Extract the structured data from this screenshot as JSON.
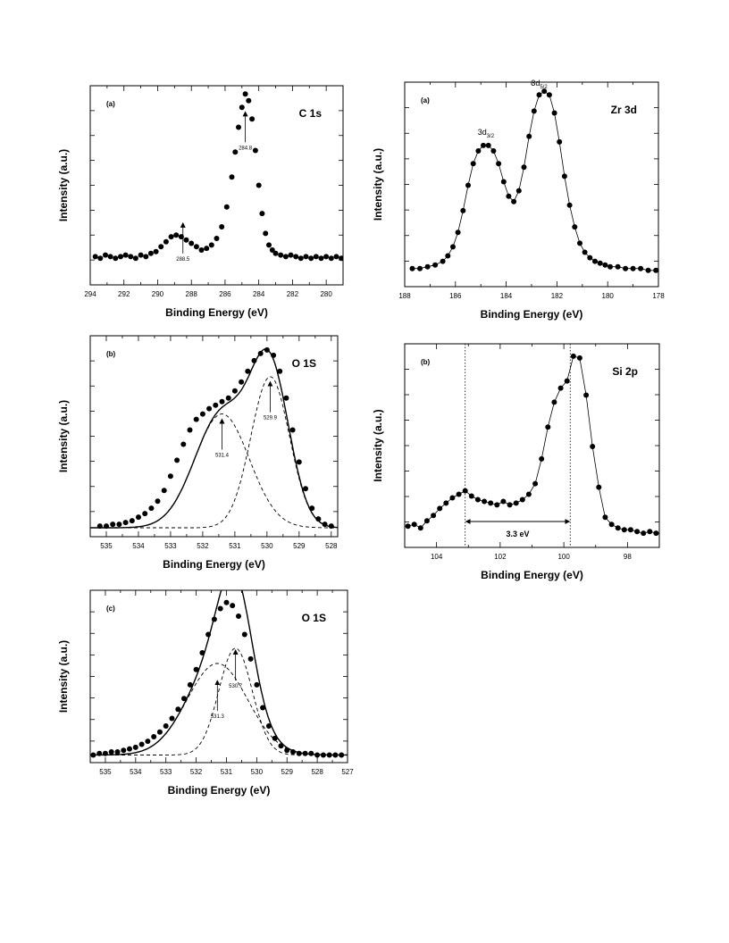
{
  "chart_data": [
    {
      "id": "c1s",
      "type": "scatter",
      "panel_tag": "(a)",
      "title": "C 1s",
      "xlabel": "Binding Energy (eV)",
      "ylabel": "Intensity (a.u.)",
      "xlim": [
        294,
        279
      ],
      "x_reversed": true,
      "xticks": [
        294,
        292,
        290,
        288,
        286,
        284,
        282,
        280
      ],
      "ylim": [
        -0.15,
        1.05
      ],
      "y_ticks_unlabeled": true,
      "series": [
        {
          "style": "markers",
          "x": [
            293.7,
            293.4,
            293.1,
            292.8,
            292.5,
            292.2,
            291.9,
            291.6,
            291.3,
            291.0,
            290.7,
            290.4,
            290.1,
            289.8,
            289.5,
            289.2,
            288.9,
            288.6,
            288.3,
            288.0,
            287.7,
            287.4,
            287.1,
            286.8,
            286.5,
            286.2,
            285.9,
            285.6,
            285.4,
            285.2,
            285.0,
            284.8,
            284.6,
            284.4,
            284.2,
            284.0,
            283.8,
            283.6,
            283.4,
            283.2,
            283.0,
            282.7,
            282.4,
            282.1,
            281.8,
            281.5,
            281.2,
            280.9,
            280.6,
            280.3,
            280.0,
            279.7,
            279.4,
            279.1
          ],
          "y": [
            0.02,
            0.01,
            0.03,
            0.02,
            0.01,
            0.02,
            0.03,
            0.02,
            0.01,
            0.03,
            0.02,
            0.04,
            0.05,
            0.08,
            0.11,
            0.14,
            0.15,
            0.14,
            0.12,
            0.1,
            0.08,
            0.06,
            0.07,
            0.09,
            0.13,
            0.2,
            0.32,
            0.5,
            0.65,
            0.8,
            0.92,
            1.0,
            0.96,
            0.85,
            0.66,
            0.45,
            0.28,
            0.16,
            0.09,
            0.06,
            0.04,
            0.03,
            0.02,
            0.03,
            0.02,
            0.01,
            0.02,
            0.01,
            0.02,
            0.01,
            0.02,
            0.01,
            0.02,
            0.01
          ]
        }
      ],
      "annotations": [
        {
          "text": "284.8",
          "x": 284.8,
          "y": 0.72
        },
        {
          "text": "288.5",
          "x": 288.5,
          "y": 0.05
        }
      ]
    },
    {
      "id": "o1s_b",
      "type": "scatter",
      "panel_tag": "(b)",
      "title": "O 1S",
      "xlabel": "Binding Energy (eV)",
      "ylabel": "Intensity (a.u.)",
      "xlim": [
        535.5,
        527.8
      ],
      "x_reversed": true,
      "xticks": [
        535,
        534,
        533,
        532,
        531,
        530,
        529,
        528
      ],
      "ylim": [
        -0.05,
        1.08
      ],
      "y_ticks_unlabeled": true,
      "series": [
        {
          "style": "markers",
          "x": [
            535.2,
            535.0,
            534.8,
            534.6,
            534.4,
            534.2,
            534.0,
            533.8,
            533.6,
            533.4,
            533.2,
            533.0,
            532.8,
            532.6,
            532.4,
            532.2,
            532.0,
            531.8,
            531.6,
            531.4,
            531.2,
            531.0,
            530.8,
            530.6,
            530.4,
            530.2,
            530.0,
            529.8,
            529.6,
            529.4,
            529.2,
            529.0,
            528.8,
            528.6,
            528.4,
            528.2,
            528.0
          ],
          "y": [
            0.01,
            0.01,
            0.02,
            0.02,
            0.03,
            0.04,
            0.06,
            0.08,
            0.11,
            0.15,
            0.21,
            0.29,
            0.38,
            0.47,
            0.55,
            0.61,
            0.64,
            0.67,
            0.69,
            0.71,
            0.73,
            0.77,
            0.82,
            0.88,
            0.94,
            0.98,
            1.0,
            0.97,
            0.88,
            0.73,
            0.55,
            0.37,
            0.22,
            0.11,
            0.05,
            0.02,
            0.01
          ]
        },
        {
          "style": "solid-line",
          "components": [
            {
              "center": 531.4,
              "amp": 0.64,
              "sigma": 0.85
            },
            {
              "center": 529.9,
              "amp": 0.85,
              "sigma": 0.6
            }
          ]
        },
        {
          "style": "dashed-line",
          "component": {
            "center": 531.4,
            "amp": 0.64,
            "sigma": 0.85
          }
        },
        {
          "style": "dashed-line",
          "component": {
            "center": 529.9,
            "amp": 0.85,
            "sigma": 0.6
          }
        }
      ],
      "annotations": [
        {
          "text": "531.4",
          "x": 531.4,
          "y": 0.45
        },
        {
          "text": "529.9",
          "x": 529.9,
          "y": 0.66
        }
      ]
    },
    {
      "id": "o1s_c",
      "type": "scatter",
      "panel_tag": "(c)",
      "title": "O 1S",
      "xlabel": "Binding Energy (eV)",
      "ylabel": "Intensity (a.u.)",
      "xlim": [
        535.5,
        527
      ],
      "x_reversed": true,
      "xticks": [
        535,
        534,
        533,
        532,
        531,
        530,
        529,
        528,
        527
      ],
      "ylim": [
        -0.05,
        1.08
      ],
      "y_ticks_unlabeled": true,
      "series": [
        {
          "style": "markers",
          "x": [
            535.4,
            535.2,
            535.0,
            534.8,
            534.6,
            534.4,
            534.2,
            534.0,
            533.8,
            533.6,
            533.4,
            533.2,
            533.0,
            532.8,
            532.6,
            532.4,
            532.2,
            532.0,
            531.8,
            531.6,
            531.4,
            531.2,
            531.0,
            530.8,
            530.6,
            530.4,
            530.2,
            530.0,
            529.8,
            529.6,
            529.4,
            529.2,
            529.0,
            528.8,
            528.6,
            528.4,
            528.2,
            528.0,
            527.8,
            527.6,
            527.4,
            527.2
          ],
          "y": [
            0.0,
            0.01,
            0.01,
            0.02,
            0.02,
            0.03,
            0.04,
            0.05,
            0.07,
            0.09,
            0.12,
            0.15,
            0.19,
            0.24,
            0.3,
            0.37,
            0.46,
            0.56,
            0.67,
            0.79,
            0.89,
            0.96,
            1.0,
            0.98,
            0.91,
            0.79,
            0.63,
            0.46,
            0.31,
            0.19,
            0.11,
            0.06,
            0.03,
            0.02,
            0.01,
            0.01,
            0.01,
            0.0,
            0.0,
            0.0,
            0.0,
            0.0
          ]
        },
        {
          "style": "solid-line",
          "components": [
            {
              "center": 531.3,
              "amp": 0.6,
              "sigma": 1.0
            },
            {
              "center": 530.7,
              "amp": 0.7,
              "sigma": 0.55
            }
          ]
        },
        {
          "style": "dashed-line",
          "component": {
            "center": 531.3,
            "amp": 0.6,
            "sigma": 1.0
          }
        },
        {
          "style": "dashed-line",
          "component": {
            "center": 530.7,
            "amp": 0.7,
            "sigma": 0.55
          }
        }
      ],
      "annotations": [
        {
          "text": "530.7",
          "x": 530.7,
          "y": 0.5
        },
        {
          "text": "531.3",
          "x": 531.3,
          "y": 0.3
        }
      ]
    },
    {
      "id": "zr3d",
      "type": "scatter",
      "panel_tag": "(a)",
      "title": "Zr 3d",
      "xlabel": "Binding Energy (eV)",
      "ylabel": "Intensity (a.u.)",
      "xlim": [
        188,
        178
      ],
      "x_reversed": true,
      "xticks": [
        188,
        186,
        184,
        182,
        180,
        178
      ],
      "ylim": [
        -0.08,
        1.05
      ],
      "y_ticks_unlabeled": true,
      "series": [
        {
          "style": "markers-and-line",
          "x": [
            187.7,
            187.4,
            187.1,
            186.8,
            186.5,
            186.3,
            186.1,
            185.9,
            185.7,
            185.5,
            185.3,
            185.1,
            184.9,
            184.7,
            184.5,
            184.3,
            184.1,
            183.9,
            183.7,
            183.5,
            183.3,
            183.1,
            182.9,
            182.7,
            182.5,
            182.3,
            182.1,
            181.9,
            181.7,
            181.5,
            181.3,
            181.1,
            180.9,
            180.7,
            180.5,
            180.3,
            180.1,
            179.9,
            179.6,
            179.3,
            179.0,
            178.7,
            178.4,
            178.1
          ],
          "y": [
            0.02,
            0.02,
            0.03,
            0.04,
            0.06,
            0.09,
            0.14,
            0.22,
            0.34,
            0.48,
            0.6,
            0.67,
            0.7,
            0.7,
            0.67,
            0.6,
            0.5,
            0.42,
            0.39,
            0.45,
            0.58,
            0.75,
            0.89,
            0.98,
            1.0,
            0.98,
            0.88,
            0.72,
            0.53,
            0.37,
            0.25,
            0.16,
            0.11,
            0.08,
            0.06,
            0.05,
            0.04,
            0.03,
            0.03,
            0.02,
            0.02,
            0.02,
            0.01,
            0.01
          ]
        }
      ],
      "peak_labels": [
        {
          "main": "3d",
          "sub": "3/2",
          "x": 184.8,
          "y": 0.76
        },
        {
          "main": "3d",
          "sub": "5/2",
          "x": 182.7,
          "y": 1.03
        }
      ]
    },
    {
      "id": "si2p",
      "type": "scatter",
      "panel_tag": "(b)",
      "title": "Si 2p",
      "xlabel": "Binding Energy (eV)",
      "ylabel": "Intensity (a.u.)",
      "xlim": [
        105,
        97
      ],
      "x_reversed": true,
      "xticks": [
        104,
        102,
        100,
        98
      ],
      "ylim": [
        -0.1,
        1.05
      ],
      "y_ticks_unlabeled": true,
      "series": [
        {
          "style": "markers-and-line",
          "x": [
            104.9,
            104.7,
            104.5,
            104.3,
            104.1,
            103.9,
            103.7,
            103.5,
            103.3,
            103.1,
            102.9,
            102.7,
            102.5,
            102.3,
            102.1,
            101.9,
            101.7,
            101.5,
            101.3,
            101.1,
            100.9,
            100.7,
            100.5,
            100.3,
            100.1,
            99.9,
            99.7,
            99.5,
            99.3,
            99.1,
            98.9,
            98.7,
            98.5,
            98.3,
            98.1,
            97.9,
            97.7,
            97.5,
            97.3,
            97.1
          ],
          "y": [
            0.02,
            0.03,
            0.01,
            0.05,
            0.08,
            0.12,
            0.15,
            0.18,
            0.2,
            0.22,
            0.19,
            0.17,
            0.16,
            0.15,
            0.14,
            0.16,
            0.14,
            0.15,
            0.17,
            0.2,
            0.26,
            0.4,
            0.58,
            0.72,
            0.8,
            0.84,
            0.98,
            0.97,
            0.76,
            0.47,
            0.24,
            0.07,
            0.03,
            0.01,
            0.0,
            0.0,
            -0.01,
            -0.02,
            -0.01,
            -0.02
          ]
        }
      ],
      "separation": {
        "label": "3.3 eV",
        "from": 103.1,
        "to": 99.8
      }
    }
  ]
}
